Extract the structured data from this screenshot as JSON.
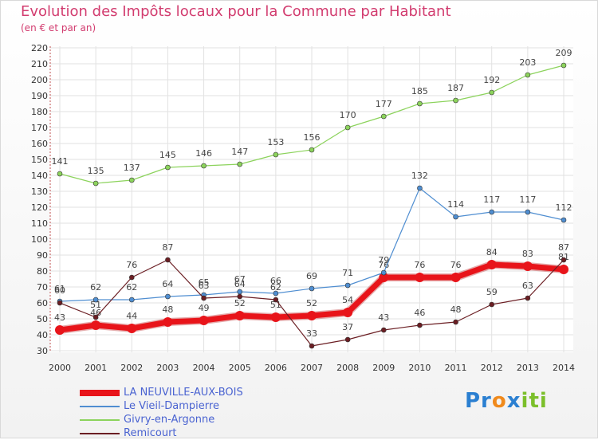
{
  "title": "Evolution des Impôts locaux pour la Commune par Habitant",
  "subtitle": "(en € et par an)",
  "logo": {
    "text": "Proxiti"
  },
  "chart_data": {
    "type": "line",
    "x": [
      "2000",
      "2001",
      "2002",
      "2003",
      "2004",
      "2005",
      "2006",
      "2007",
      "2008",
      "2009",
      "2010",
      "2011",
      "2012",
      "2013",
      "2014"
    ],
    "ylim": [
      30,
      220
    ],
    "yticks": [
      30,
      40,
      50,
      60,
      70,
      80,
      90,
      100,
      110,
      120,
      130,
      140,
      150,
      160,
      170,
      180,
      190,
      200,
      210,
      220
    ],
    "grid": true,
    "legend": "bottom-left",
    "series": [
      {
        "name": "LA NEUVILLE-AUX-BOIS",
        "color": "#e8141a",
        "width": 7,
        "values": [
          43,
          46,
          44,
          48,
          49,
          52,
          51,
          52,
          54,
          76,
          76,
          76,
          84,
          83,
          81
        ]
      },
      {
        "name": "Le Vieil-Dampierre",
        "color": "#4f8ed1",
        "width": 1.2,
        "values": [
          61,
          62,
          62,
          64,
          65,
          67,
          66,
          69,
          71,
          79,
          132,
          114,
          117,
          117,
          112
        ]
      },
      {
        "name": "Givry-en-Argonne",
        "color": "#8cd35c",
        "width": 1.2,
        "values": [
          141,
          135,
          137,
          145,
          146,
          147,
          153,
          156,
          170,
          177,
          185,
          187,
          192,
          203,
          209
        ]
      },
      {
        "name": "Remicourt",
        "color": "#6b1e23",
        "width": 1.2,
        "values": [
          60,
          51,
          76,
          87,
          63,
          64,
          62,
          33,
          37,
          43,
          46,
          48,
          59,
          63,
          87
        ]
      }
    ]
  }
}
